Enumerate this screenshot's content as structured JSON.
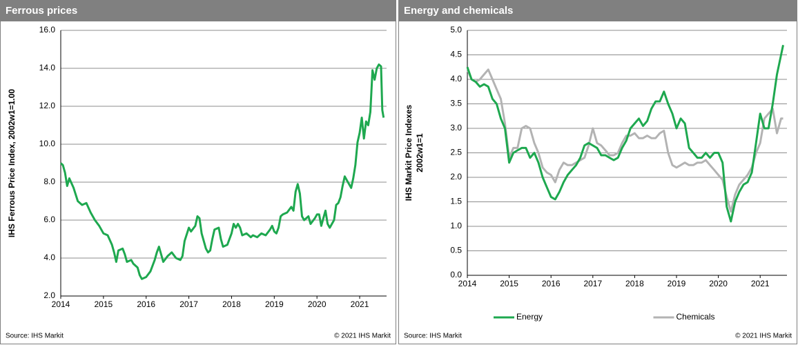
{
  "chart_data": [
    {
      "type": "line",
      "title": "Ferrous prices",
      "ylabel": "IHS Ferrous Price Index, 2002w1=1.00",
      "source": "Source:  IHS Markit",
      "copyright": "© 2021  IHS Markit",
      "x": [
        2014.0,
        2014.05,
        2014.1,
        2014.15,
        2014.2,
        2014.3,
        2014.4,
        2014.5,
        2014.6,
        2014.7,
        2014.8,
        2014.9,
        2015.0,
        2015.1,
        2015.2,
        2015.25,
        2015.3,
        2015.35,
        2015.45,
        2015.5,
        2015.55,
        2015.65,
        2015.7,
        2015.8,
        2015.85,
        2015.9,
        2016.0,
        2016.1,
        2016.2,
        2016.25,
        2016.3,
        2016.35,
        2016.4,
        2016.5,
        2016.6,
        2016.7,
        2016.8,
        2016.85,
        2016.9,
        2017.0,
        2017.05,
        2017.15,
        2017.2,
        2017.25,
        2017.3,
        2017.35,
        2017.4,
        2017.45,
        2017.5,
        2017.55,
        2017.6,
        2017.7,
        2017.75,
        2017.8,
        2017.9,
        2018.0,
        2018.05,
        2018.1,
        2018.15,
        2018.2,
        2018.25,
        2018.35,
        2018.45,
        2018.5,
        2018.6,
        2018.7,
        2018.8,
        2018.9,
        2018.95,
        2019.0,
        2019.05,
        2019.1,
        2019.15,
        2019.2,
        2019.3,
        2019.4,
        2019.45,
        2019.5,
        2019.55,
        2019.6,
        2019.65,
        2019.7,
        2019.8,
        2019.85,
        2019.95,
        2020.0,
        2020.05,
        2020.1,
        2020.15,
        2020.2,
        2020.25,
        2020.3,
        2020.4,
        2020.45,
        2020.5,
        2020.55,
        2020.6,
        2020.65,
        2020.7,
        2020.8,
        2020.85,
        2020.9,
        2020.95,
        2021.0,
        2021.05,
        2021.1,
        2021.15,
        2021.2,
        2021.25,
        2021.3,
        2021.35,
        2021.4,
        2021.45,
        2021.5,
        2021.53,
        2021.56
      ],
      "series": [
        {
          "color": "#1ea84f",
          "values": [
            9.0,
            8.9,
            8.5,
            7.8,
            8.2,
            7.7,
            7.0,
            6.8,
            6.9,
            6.4,
            6.0,
            5.7,
            5.3,
            5.2,
            4.7,
            4.3,
            3.8,
            4.4,
            4.5,
            4.2,
            3.8,
            3.9,
            3.7,
            3.5,
            3.1,
            2.9,
            3.0,
            3.3,
            3.9,
            4.3,
            4.6,
            4.2,
            3.8,
            4.1,
            4.3,
            4.0,
            3.9,
            4.1,
            4.9,
            5.6,
            5.4,
            5.7,
            6.2,
            6.1,
            5.3,
            4.9,
            4.5,
            4.3,
            4.4,
            5.0,
            5.5,
            5.6,
            5.0,
            4.6,
            4.7,
            5.3,
            5.8,
            5.6,
            5.8,
            5.6,
            5.2,
            5.3,
            5.1,
            5.2,
            5.1,
            5.3,
            5.2,
            5.5,
            5.7,
            5.4,
            5.3,
            5.6,
            6.2,
            6.3,
            6.4,
            6.7,
            6.5,
            7.5,
            7.9,
            7.4,
            6.2,
            6.0,
            6.2,
            5.8,
            6.1,
            6.3,
            6.3,
            5.7,
            6.1,
            6.5,
            5.8,
            5.6,
            6.0,
            6.8,
            6.9,
            7.2,
            7.8,
            8.3,
            8.1,
            7.7,
            8.2,
            8.9,
            10.1,
            10.6,
            11.4,
            10.3,
            11.2,
            11.0,
            11.7,
            13.9,
            13.4,
            14.0,
            14.2,
            14.1,
            11.8,
            11.4
          ]
        }
      ],
      "xlim": [
        2014,
        2021.63
      ],
      "xticks": [
        2014,
        2015,
        2016,
        2017,
        2018,
        2019,
        2020,
        2021
      ],
      "ylim": [
        2,
        16
      ],
      "yticks": [
        {
          "value": 2,
          "label": "2.0"
        },
        {
          "value": 4,
          "label": "4.0"
        },
        {
          "value": 6,
          "label": "6.0"
        },
        {
          "value": 8,
          "label": "8.0"
        },
        {
          "value": 10,
          "label": "10.0"
        },
        {
          "value": 12,
          "label": "12.0"
        },
        {
          "value": 14,
          "label": "14.0"
        },
        {
          "value": 16,
          "label": "16.0"
        }
      ],
      "grid": true
    },
    {
      "type": "line",
      "title": "Energy and chemicals",
      "ylabel": [
        "IHS Markit Price Indexes",
        "2002w1=1"
      ],
      "source": "Source:  IHS Markit",
      "copyright": "© 2021  IHS Markit",
      "legend": "bottom",
      "x": [
        2014.0,
        2014.1,
        2014.2,
        2014.3,
        2014.4,
        2014.5,
        2014.6,
        2014.7,
        2014.8,
        2014.9,
        2015.0,
        2015.1,
        2015.2,
        2015.3,
        2015.4,
        2015.5,
        2015.6,
        2015.7,
        2015.8,
        2015.9,
        2016.0,
        2016.1,
        2016.2,
        2016.3,
        2016.4,
        2016.5,
        2016.6,
        2016.7,
        2016.8,
        2016.9,
        2017.0,
        2017.1,
        2017.2,
        2017.3,
        2017.4,
        2017.5,
        2017.6,
        2017.7,
        2017.8,
        2017.9,
        2018.0,
        2018.1,
        2018.2,
        2018.3,
        2018.4,
        2018.5,
        2018.6,
        2018.7,
        2018.8,
        2018.9,
        2019.0,
        2019.1,
        2019.2,
        2019.3,
        2019.4,
        2019.5,
        2019.6,
        2019.7,
        2019.8,
        2019.9,
        2020.0,
        2020.1,
        2020.2,
        2020.3,
        2020.4,
        2020.5,
        2020.6,
        2020.7,
        2020.8,
        2020.9,
        2021.0,
        2021.1,
        2021.2,
        2021.3,
        2021.4,
        2021.5,
        2021.55
      ],
      "series": [
        {
          "name": "Chemicals",
          "color": "#b3b3b3",
          "values": [
            4.2,
            4.0,
            3.95,
            4.0,
            4.1,
            4.2,
            4.0,
            3.8,
            3.6,
            3.1,
            2.4,
            2.6,
            2.6,
            3.0,
            3.05,
            3.0,
            2.7,
            2.5,
            2.2,
            2.1,
            2.05,
            1.9,
            2.15,
            2.3,
            2.25,
            2.25,
            2.3,
            2.35,
            2.4,
            2.65,
            3.0,
            2.7,
            2.65,
            2.55,
            2.45,
            2.45,
            2.5,
            2.7,
            2.85,
            2.85,
            2.9,
            2.8,
            2.8,
            2.85,
            2.8,
            2.8,
            2.9,
            2.95,
            2.5,
            2.25,
            2.2,
            2.25,
            2.3,
            2.25,
            2.25,
            2.3,
            2.3,
            2.35,
            2.25,
            2.15,
            2.05,
            1.95,
            1.6,
            1.3,
            1.65,
            1.85,
            1.95,
            2.05,
            2.2,
            2.5,
            2.7,
            3.2,
            3.3,
            3.4,
            2.9,
            3.2,
            3.2
          ]
        },
        {
          "name": "Energy",
          "color": "#1ea84f",
          "values": [
            4.25,
            4.0,
            3.95,
            3.85,
            3.9,
            3.85,
            3.6,
            3.5,
            3.2,
            3.0,
            2.3,
            2.5,
            2.55,
            2.6,
            2.6,
            2.4,
            2.5,
            2.3,
            2.0,
            1.8,
            1.6,
            1.55,
            1.7,
            1.9,
            2.05,
            2.15,
            2.25,
            2.4,
            2.65,
            2.7,
            2.65,
            2.6,
            2.45,
            2.45,
            2.4,
            2.35,
            2.4,
            2.6,
            2.75,
            3.0,
            3.1,
            3.2,
            3.05,
            3.15,
            3.4,
            3.55,
            3.55,
            3.75,
            3.5,
            3.3,
            3.0,
            3.2,
            3.1,
            2.6,
            2.5,
            2.4,
            2.4,
            2.5,
            2.4,
            2.5,
            2.5,
            2.3,
            1.4,
            1.1,
            1.5,
            1.7,
            1.85,
            1.9,
            2.1,
            2.7,
            3.3,
            3.0,
            3.0,
            3.5,
            4.1,
            4.5,
            4.7
          ]
        }
      ],
      "xlim": [
        2014,
        2021.64
      ],
      "xticks": [
        2014,
        2015,
        2016,
        2017,
        2018,
        2019,
        2020,
        2021
      ],
      "ylim": [
        0,
        5
      ],
      "yticks": [
        {
          "value": 0,
          "label": "0.0"
        },
        {
          "value": 0.5,
          "label": "0.5"
        },
        {
          "value": 1,
          "label": "1.0"
        },
        {
          "value": 1.5,
          "label": "1.5"
        },
        {
          "value": 2,
          "label": "2.0"
        },
        {
          "value": 2.5,
          "label": "2.5"
        },
        {
          "value": 3,
          "label": "3.0"
        },
        {
          "value": 3.5,
          "label": "3.5"
        },
        {
          "value": 4,
          "label": "4.0"
        },
        {
          "value": 4.5,
          "label": "4.5"
        },
        {
          "value": 5,
          "label": "5.0"
        }
      ],
      "grid": true
    }
  ]
}
